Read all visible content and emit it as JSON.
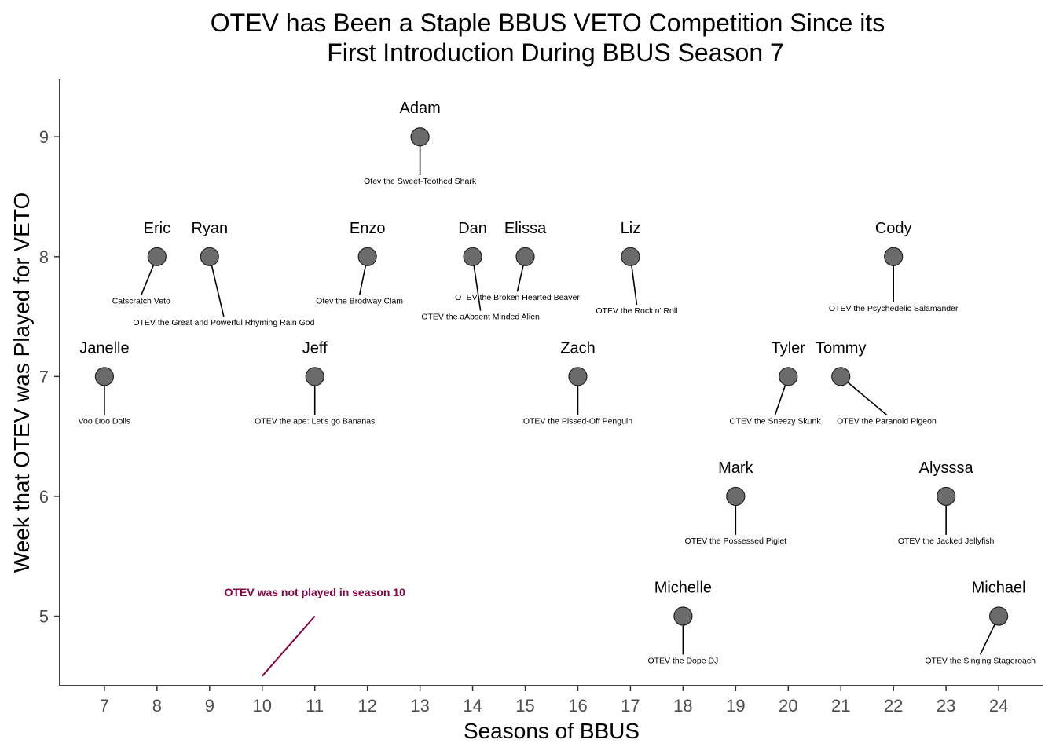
{
  "chart_data": {
    "type": "scatter",
    "title_lines": [
      "OTEV has Been a Staple BBUS VETO Competition Since its",
      "First Introduction During BBUS Season 7"
    ],
    "xlabel": "Seasons of BBUS",
    "ylabel": "Week that OTEV was Played for VETO",
    "xlim": [
      6.15,
      24.85
    ],
    "ylim": [
      4.42,
      9.48
    ],
    "xticks": [
      7,
      8,
      9,
      10,
      11,
      12,
      13,
      14,
      15,
      16,
      17,
      18,
      19,
      20,
      21,
      22,
      23,
      24
    ],
    "yticks": [
      5,
      6,
      7,
      8,
      9
    ],
    "grid": false,
    "legend": "none",
    "point_color": "#6b6b6b",
    "points": [
      {
        "season": 7,
        "week": 7,
        "name": "Janelle",
        "competition": "Voo Doo Dolls",
        "cx": 7,
        "cy": 6.64
      },
      {
        "season": 8,
        "week": 8,
        "name": "Eric",
        "competition": "Catscratch Veto",
        "cx": 7.7,
        "cy": 7.64
      },
      {
        "season": 9,
        "week": 8,
        "name": "Ryan",
        "competition": "OTEV the Great and Powerful Rhyming Rain God",
        "cx": 9.27,
        "cy": 7.46
      },
      {
        "season": 11,
        "week": 7,
        "name": "Jeff",
        "competition": "OTEV the ape: Let's go Bananas",
        "cx": 11,
        "cy": 6.64
      },
      {
        "season": 12,
        "week": 8,
        "name": "Enzo",
        "competition": "Otev the Brodway Clam",
        "cx": 11.85,
        "cy": 7.64
      },
      {
        "season": 13,
        "week": 9,
        "name": "Adam",
        "competition": "Otev the Sweet-Toothed Shark",
        "cx": 13,
        "cy": 8.64
      },
      {
        "season": 14,
        "week": 8,
        "name": "Dan",
        "competition": "OTEV the aAbsent Minded Alien",
        "cx": 14.15,
        "cy": 7.51
      },
      {
        "season": 15,
        "week": 8,
        "name": "Elissa",
        "competition": "OTEV the Broken Hearted Beaver",
        "cx": 14.85,
        "cy": 7.67
      },
      {
        "season": 16,
        "week": 7,
        "name": "Zach",
        "competition": "OTEV the Pissed-Off Penguin",
        "cx": 16,
        "cy": 6.64
      },
      {
        "season": 17,
        "week": 8,
        "name": "Liz",
        "competition": "OTEV the Rockin' Roll",
        "cx": 17.12,
        "cy": 7.56
      },
      {
        "season": 18,
        "week": 5,
        "name": "Michelle",
        "competition": "OTEV the Dope DJ",
        "cx": 18,
        "cy": 4.64
      },
      {
        "season": 19,
        "week": 6,
        "name": "Mark",
        "competition": "OTEV the Possessed Piglet",
        "cx": 19,
        "cy": 5.64
      },
      {
        "season": 20,
        "week": 7,
        "name": "Tyler",
        "competition": "OTEV the Sneezy Skunk",
        "cx": 19.75,
        "cy": 6.64
      },
      {
        "season": 21,
        "week": 7,
        "name": "Tommy",
        "competition": "OTEV the Paranoid Pigeon",
        "cx": 21.87,
        "cy": 6.64
      },
      {
        "season": 22,
        "week": 8,
        "name": "Cody",
        "competition": "OTEV the Psychedelic Salamander",
        "cx": 22,
        "cy": 7.58
      },
      {
        "season": 23,
        "week": 6,
        "name": "Alysssa",
        "competition": "OTEV the Jacked Jellyfish",
        "cx": 23,
        "cy": 5.64
      },
      {
        "season": 24,
        "week": 5,
        "name": "Michael",
        "competition": "OTEV the Singing Stageroach",
        "cx": 23.65,
        "cy": 4.64
      }
    ],
    "annotation": {
      "text": "OTEV was not played in season 10",
      "color": "#8b0045",
      "text_x": 11,
      "text_y": 5.2,
      "arrow_from": [
        10,
        4.5
      ],
      "arrow_to": [
        11,
        5
      ]
    }
  }
}
